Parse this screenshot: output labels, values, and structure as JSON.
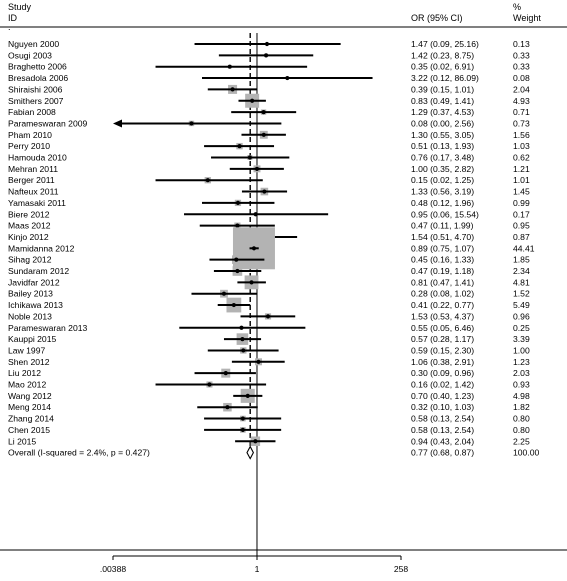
{
  "header": {
    "study_line1": "Study",
    "study_line2": "ID",
    "or_label": "OR (95% CI)",
    "pct_line1": "%",
    "pct_line2": "Weight"
  },
  "chart_data": {
    "type": "forest",
    "xscale": "log",
    "xlim": [
      0.00388,
      258
    ],
    "xticks": [
      ".00388",
      "1",
      "258"
    ],
    "reference_line": 1,
    "overall_line": 0.77,
    "colors": {
      "ci": "#000000",
      "box": "#b3b3b3",
      "dashed": "#000000"
    },
    "studies": [
      {
        "id": "Nguyen 2000",
        "or": 1.47,
        "lo": 0.09,
        "hi": 25.16,
        "label": "1.47 (0.09, 25.16)",
        "weight": "0.13"
      },
      {
        "id": "Osugi 2003",
        "or": 1.42,
        "lo": 0.23,
        "hi": 8.75,
        "label": "1.42 (0.23, 8.75)",
        "weight": "0.33"
      },
      {
        "id": "Braghetto 2006",
        "or": 0.35,
        "lo": 0.02,
        "hi": 6.91,
        "label": "0.35 (0.02, 6.91)",
        "weight": "0.33"
      },
      {
        "id": "Bresadola 2006",
        "or": 3.22,
        "lo": 0.12,
        "hi": 86.09,
        "label": "3.22 (0.12, 86.09)",
        "weight": "0.08"
      },
      {
        "id": "Shiraishi 2006",
        "or": 0.39,
        "lo": 0.15,
        "hi": 1.01,
        "label": "0.39 (0.15, 1.01)",
        "weight": "2.04"
      },
      {
        "id": "Smithers 2007",
        "or": 0.83,
        "lo": 0.49,
        "hi": 1.41,
        "label": "0.83 (0.49, 1.41)",
        "weight": "4.93"
      },
      {
        "id": "Fabian 2008",
        "or": 1.29,
        "lo": 0.37,
        "hi": 4.53,
        "label": "1.29 (0.37, 4.53)",
        "weight": "0.71"
      },
      {
        "id": "Parameswaran 2009",
        "or": 0.08,
        "lo": 0.0,
        "hi": 2.56,
        "label": "0.08 (0.00, 2.56)",
        "weight": "0.73",
        "arrow_left": true
      },
      {
        "id": "Pham 2010",
        "or": 1.3,
        "lo": 0.55,
        "hi": 3.05,
        "label": "1.30 (0.55, 3.05)",
        "weight": "1.56"
      },
      {
        "id": "Perry 2010",
        "or": 0.51,
        "lo": 0.13,
        "hi": 1.93,
        "label": "0.51 (0.13, 1.93)",
        "weight": "1.03"
      },
      {
        "id": "Hamouda 2010",
        "or": 0.76,
        "lo": 0.17,
        "hi": 3.48,
        "label": "0.76 (0.17, 3.48)",
        "weight": "0.62"
      },
      {
        "id": "Mehran 2011",
        "or": 1.0,
        "lo": 0.35,
        "hi": 2.82,
        "label": "1.00 (0.35, 2.82)",
        "weight": "1.21"
      },
      {
        "id": "Berger 2011",
        "or": 0.15,
        "lo": 0.02,
        "hi": 1.25,
        "label": "0.15 (0.02, 1.25)",
        "weight": "1.01"
      },
      {
        "id": "Nafteux 2011",
        "or": 1.33,
        "lo": 0.56,
        "hi": 3.19,
        "label": "1.33 (0.56, 3.19)",
        "weight": "1.45"
      },
      {
        "id": "Yamasaki 2011",
        "or": 0.48,
        "lo": 0.12,
        "hi": 1.96,
        "label": "0.48 (0.12, 1.96)",
        "weight": "0.99"
      },
      {
        "id": "Biere 2012",
        "or": 0.95,
        "lo": 0.06,
        "hi": 15.54,
        "label": "0.95 (0.06, 15.54)",
        "weight": "0.17"
      },
      {
        "id": "Maas 2012",
        "or": 0.47,
        "lo": 0.11,
        "hi": 1.99,
        "label": "0.47 (0.11, 1.99)",
        "weight": "0.95"
      },
      {
        "id": "Kinjo 2012",
        "or": 1.54,
        "lo": 0.51,
        "hi": 4.7,
        "label": "1.54 (0.51, 4.70)",
        "weight": "0.87"
      },
      {
        "id": "Mamidanna 2012",
        "or": 0.89,
        "lo": 0.75,
        "hi": 1.07,
        "label": "0.89 (0.75, 1.07)",
        "weight": "44.41"
      },
      {
        "id": "Sihag 2012",
        "or": 0.45,
        "lo": 0.16,
        "hi": 1.33,
        "label": "0.45 (0.16, 1.33)",
        "weight": "1.85"
      },
      {
        "id": "Sundaram 2012",
        "or": 0.47,
        "lo": 0.19,
        "hi": 1.18,
        "label": "0.47 (0.19, 1.18)",
        "weight": "2.34"
      },
      {
        "id": "Javidfar 2012",
        "or": 0.81,
        "lo": 0.47,
        "hi": 1.41,
        "label": "0.81 (0.47, 1.41)",
        "weight": "4.81"
      },
      {
        "id": "Bailey 2013",
        "or": 0.28,
        "lo": 0.08,
        "hi": 1.02,
        "label": "0.28 (0.08, 1.02)",
        "weight": "1.52"
      },
      {
        "id": "Ichikawa 2013",
        "or": 0.41,
        "lo": 0.22,
        "hi": 0.77,
        "label": "0.41 (0.22, 0.77)",
        "weight": "5.49"
      },
      {
        "id": "Noble 2013",
        "or": 1.53,
        "lo": 0.53,
        "hi": 4.37,
        "label": "1.53 (0.53, 4.37)",
        "weight": "0.96"
      },
      {
        "id": "Parameswaran 2013",
        "or": 0.55,
        "lo": 0.05,
        "hi": 6.46,
        "label": "0.55 (0.05, 6.46)",
        "weight": "0.25"
      },
      {
        "id": "Kauppi 2015",
        "or": 0.57,
        "lo": 0.28,
        "hi": 1.17,
        "label": "0.57 (0.28, 1.17)",
        "weight": "3.39"
      },
      {
        "id": "Law 1997",
        "or": 0.59,
        "lo": 0.15,
        "hi": 2.3,
        "label": "0.59 (0.15, 2.30)",
        "weight": "1.00"
      },
      {
        "id": "Shen 2012",
        "or": 1.06,
        "lo": 0.38,
        "hi": 2.91,
        "label": "1.06 (0.38, 2.91)",
        "weight": "1.23"
      },
      {
        "id": "Liu 2012",
        "or": 0.3,
        "lo": 0.09,
        "hi": 0.96,
        "label": "0.30 (0.09, 0.96)",
        "weight": "2.03"
      },
      {
        "id": "Mao 2012",
        "or": 0.16,
        "lo": 0.02,
        "hi": 1.42,
        "label": "0.16 (0.02, 1.42)",
        "weight": "0.93"
      },
      {
        "id": "Wang 2012",
        "or": 0.7,
        "lo": 0.4,
        "hi": 1.23,
        "label": "0.70 (0.40, 1.23)",
        "weight": "4.98"
      },
      {
        "id": "Meng 2014",
        "or": 0.32,
        "lo": 0.1,
        "hi": 1.03,
        "label": "0.32 (0.10, 1.03)",
        "weight": "1.82"
      },
      {
        "id": "Zhang  2014",
        "or": 0.58,
        "lo": 0.13,
        "hi": 2.54,
        "label": "0.58 (0.13, 2.54)",
        "weight": "0.80"
      },
      {
        "id": "Chen 2015",
        "or": 0.58,
        "lo": 0.13,
        "hi": 2.54,
        "label": "0.58 (0.13, 2.54)",
        "weight": "0.80"
      },
      {
        "id": "Li 2015",
        "or": 0.94,
        "lo": 0.43,
        "hi": 2.04,
        "label": "0.94 (0.43, 2.04)",
        "weight": "2.25"
      }
    ],
    "overall": {
      "id": "Overall  (I-squared = 2.4%, p = 0.427)",
      "or": 0.77,
      "lo": 0.68,
      "hi": 0.87,
      "label": "0.77 (0.68, 0.87)",
      "weight": "100.00"
    }
  }
}
